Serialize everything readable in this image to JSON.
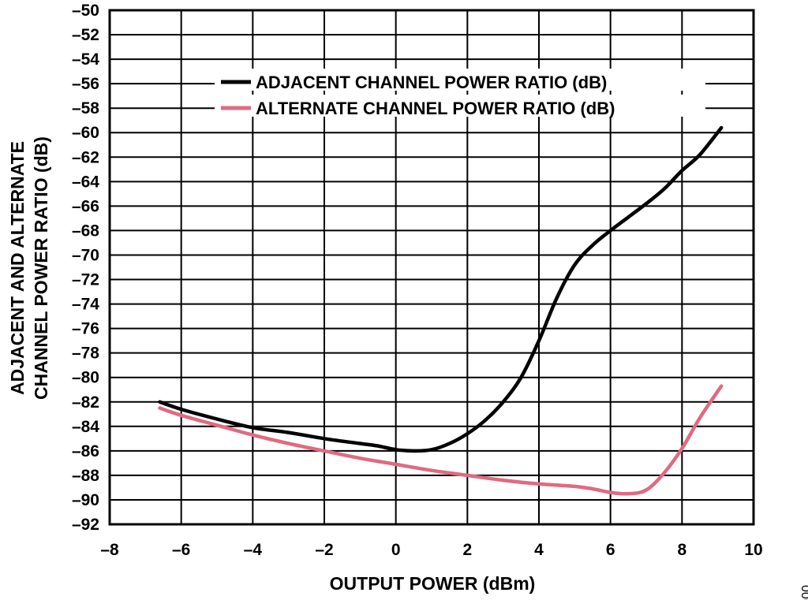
{
  "chart_data": {
    "type": "line",
    "title": "",
    "xlabel": "OUTPUT POWER (dBm)",
    "ylabel_lines": [
      "ADJACENT AND ALTERNATE",
      "CHANNEL POWER  RATIO (dB)"
    ],
    "xlim": [
      -8,
      10
    ],
    "ylim": [
      -92,
      -50
    ],
    "x_ticks": [
      -8,
      -6,
      -4,
      -2,
      0,
      2,
      4,
      6,
      8,
      10
    ],
    "y_ticks": [
      -50,
      -52,
      -54,
      -56,
      -58,
      -60,
      -62,
      -64,
      -66,
      -68,
      -70,
      -72,
      -74,
      -76,
      -78,
      -80,
      -82,
      -84,
      -86,
      -88,
      -90,
      -92
    ],
    "x_tick_labels": [
      "–8",
      "–6",
      "–4",
      "–2",
      "0",
      "2",
      "4",
      "6",
      "8",
      "10"
    ],
    "y_tick_labels": [
      "–50",
      "–52",
      "–54",
      "–56",
      "–58",
      "–60",
      "–62",
      "–64",
      "–66",
      "–68",
      "–70",
      "–72",
      "–74",
      "–76",
      "–78",
      "–80",
      "–82",
      "–84",
      "–86",
      "–88",
      "–90",
      "–92"
    ],
    "grid": true,
    "legend_placement": "top-right",
    "series": [
      {
        "name": "ADJACENT CHANNEL POWER RATIO (dB)",
        "color": "#000000",
        "points": [
          [
            -6.6,
            -82.0
          ],
          [
            -6.0,
            -82.6
          ],
          [
            -5.0,
            -83.4
          ],
          [
            -4.0,
            -84.1
          ],
          [
            -3.0,
            -84.5
          ],
          [
            -2.0,
            -85.0
          ],
          [
            -1.0,
            -85.4
          ],
          [
            -0.5,
            -85.6
          ],
          [
            0.0,
            -85.9
          ],
          [
            0.5,
            -86.0
          ],
          [
            1.0,
            -85.9
          ],
          [
            1.5,
            -85.4
          ],
          [
            2.0,
            -84.6
          ],
          [
            2.5,
            -83.5
          ],
          [
            3.0,
            -82.0
          ],
          [
            3.5,
            -80.0
          ],
          [
            4.0,
            -77.0
          ],
          [
            4.5,
            -73.5
          ],
          [
            5.0,
            -70.8
          ],
          [
            5.5,
            -69.2
          ],
          [
            6.0,
            -68.0
          ],
          [
            6.5,
            -66.9
          ],
          [
            7.0,
            -65.8
          ],
          [
            7.5,
            -64.6
          ],
          [
            8.0,
            -63.1
          ],
          [
            8.5,
            -61.8
          ],
          [
            9.1,
            -59.6
          ]
        ]
      },
      {
        "name": "ALTERNATE CHANNEL POWER RATIO (dB)",
        "color": "#e06a80",
        "points": [
          [
            -6.6,
            -82.5
          ],
          [
            -6.0,
            -83.1
          ],
          [
            -5.0,
            -83.9
          ],
          [
            -4.0,
            -84.7
          ],
          [
            -3.0,
            -85.4
          ],
          [
            -2.0,
            -86.0
          ],
          [
            -1.0,
            -86.6
          ],
          [
            0.0,
            -87.1
          ],
          [
            1.0,
            -87.6
          ],
          [
            2.0,
            -88.0
          ],
          [
            3.0,
            -88.4
          ],
          [
            4.0,
            -88.7
          ],
          [
            5.0,
            -88.9
          ],
          [
            5.5,
            -89.1
          ],
          [
            6.0,
            -89.4
          ],
          [
            6.5,
            -89.5
          ],
          [
            7.0,
            -89.2
          ],
          [
            7.5,
            -87.8
          ],
          [
            8.0,
            -85.8
          ],
          [
            8.5,
            -83.3
          ],
          [
            9.1,
            -80.7
          ]
        ]
      }
    ],
    "figure_id": "006"
  }
}
